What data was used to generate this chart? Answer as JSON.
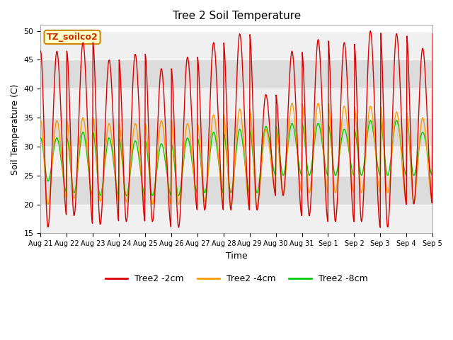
{
  "title": "Tree 2 Soil Temperature",
  "xlabel": "Time",
  "ylabel": "Soil Temperature (C)",
  "ylim": [
    15,
    51
  ],
  "yticks": [
    15,
    20,
    25,
    30,
    35,
    40,
    45,
    50
  ],
  "annotation_text": "TZ_soilco2",
  "annotation_bg": "#ffffcc",
  "annotation_border": "#cc8800",
  "x_tick_labels": [
    "Aug 21",
    "Aug 22",
    "Aug 23",
    "Aug 24",
    "Aug 25",
    "Aug 26",
    "Aug 27",
    "Aug 28",
    "Aug 29",
    "Aug 30",
    "Aug 31",
    "Sep 1",
    "Sep 2",
    "Sep 3",
    "Sep 4",
    "Sep 5"
  ],
  "line_colors": {
    "2cm": "#dd0000",
    "4cm": "#ff9900",
    "8cm": "#00cc00"
  },
  "legend_labels": [
    "Tree2 -2cm",
    "Tree2 -4cm",
    "Tree2 -8cm"
  ],
  "background_color": "#ffffff",
  "plot_bg_light": "#f0f0f0",
  "plot_bg_dark": "#dcdcdc",
  "grid_color": "#ffffff",
  "title_fontsize": 11,
  "axis_label_fontsize": 9,
  "tick_fontsize": 8,
  "legend_fontsize": 9,
  "peaks_2cm": [
    46.5,
    48.0,
    45.0,
    46.0,
    43.5,
    45.5,
    48.0,
    49.5,
    39.0,
    46.5,
    48.5,
    48.0,
    50.0,
    49.5,
    47.0
  ],
  "mins_2cm": [
    16.0,
    18.0,
    16.5,
    17.0,
    17.0,
    16.0,
    19.0,
    19.0,
    19.0,
    21.5,
    18.0,
    17.0,
    17.0,
    16.0,
    20.0
  ],
  "peaks_4cm": [
    34.5,
    35.0,
    34.0,
    34.0,
    34.5,
    34.0,
    35.5,
    36.5,
    33.0,
    37.5,
    37.5,
    37.0,
    37.0,
    36.0,
    35.0
  ],
  "mins_4cm": [
    20.0,
    21.0,
    20.5,
    20.5,
    20.0,
    20.0,
    20.5,
    20.0,
    19.5,
    22.0,
    22.0,
    22.0,
    22.0,
    22.0,
    20.5
  ],
  "peaks_8cm": [
    31.5,
    32.5,
    31.5,
    31.0,
    30.5,
    31.5,
    32.5,
    33.0,
    33.5,
    34.0,
    34.0,
    33.0,
    34.5,
    34.5,
    32.5
  ],
  "mins_8cm": [
    24.0,
    22.0,
    21.5,
    21.5,
    21.5,
    21.5,
    22.0,
    22.0,
    22.0,
    25.0,
    25.0,
    25.0,
    25.0,
    25.0,
    25.0
  ]
}
